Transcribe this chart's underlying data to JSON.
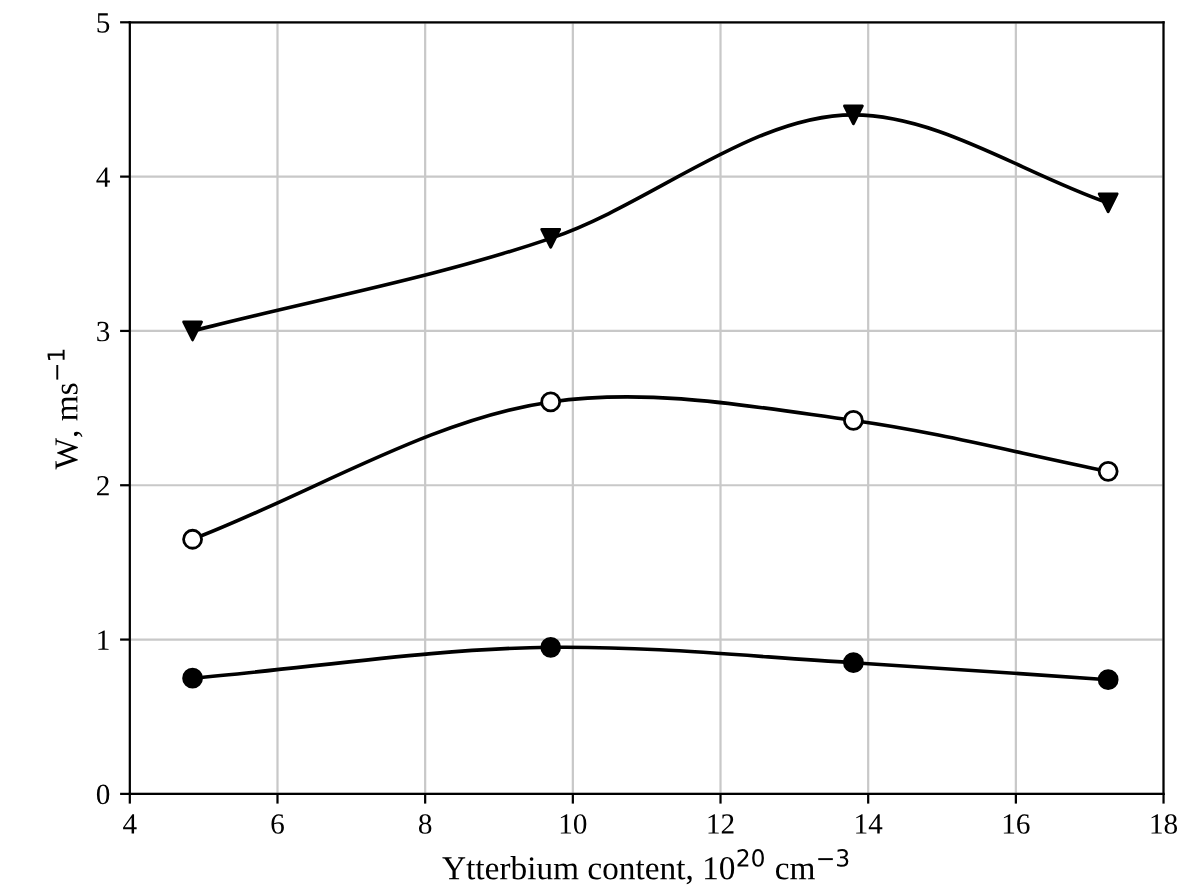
{
  "chart_data": {
    "type": "line",
    "xlabel": "Ytterbium content, 10$^{20}$ cm$^{−3}$",
    "ylabel": "W, ms$^{−1}$",
    "x": [
      4.85,
      9.7,
      13.8,
      17.25
    ],
    "series": [
      {
        "color": "#000000",
        "marker": "triangle",
        "values": [
          3.0,
          3.6,
          4.4,
          3.83
        ]
      },
      {
        "color": "#000000",
        "marker": "circle",
        "colors": [
          "#ffffff",
          "#ffffff",
          "#ffffff",
          "#ffffff"
        ],
        "values": [
          1.65,
          2.54,
          2.42,
          2.09
        ]
      },
      {
        "color": "#000000",
        "marker": "circle",
        "values": [
          0.75,
          0.95,
          0.85,
          0.74
        ]
      }
    ],
    "xlim": [
      4,
      18
    ],
    "xticks": [
      4,
      6,
      8,
      10,
      12,
      14,
      16,
      18
    ],
    "ylim": [
      0,
      5
    ],
    "yticks": [
      0,
      1,
      2,
      3,
      4,
      5
    ],
    "grid": true,
    "legend": false
  }
}
